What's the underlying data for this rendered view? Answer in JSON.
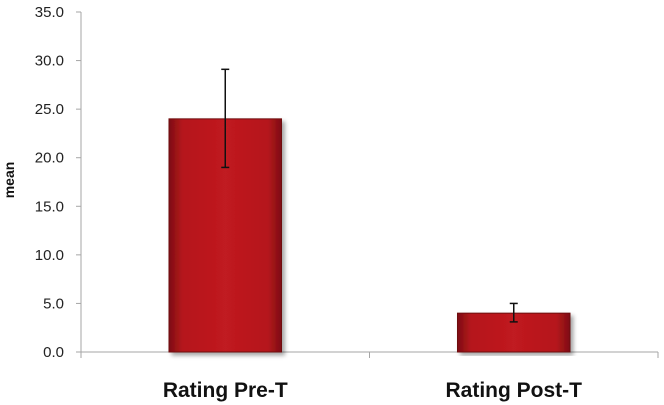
{
  "chart_data": {
    "type": "bar",
    "title": "",
    "xlabel": "",
    "ylabel": "mean",
    "categories": [
      "Rating Pre-T",
      "Rating Post-T"
    ],
    "values": [
      24.0,
      4.0
    ],
    "error_low": [
      19.0,
      3.1
    ],
    "error_high": [
      29.1,
      5.0
    ],
    "ylim": [
      0,
      35
    ],
    "yticks": [
      0,
      5,
      10,
      15,
      20,
      25,
      30,
      35
    ],
    "ytick_labels": [
      "0.0",
      "5.0",
      "10.0",
      "15.0",
      "20.0",
      "25.0",
      "30.0",
      "35.0"
    ],
    "grid": false,
    "legend": "none",
    "colors": {
      "bar_fill": "#b5161c",
      "bar_edge": "#6e0c10",
      "axis": "#a6a6a6",
      "error_bar": "#111111"
    }
  }
}
